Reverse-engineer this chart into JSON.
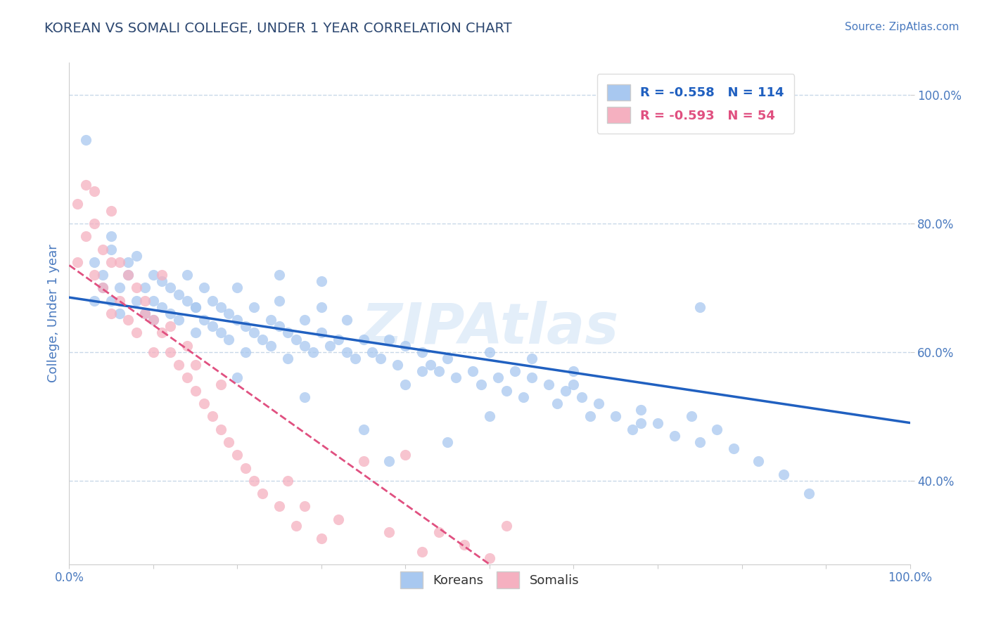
{
  "title": "KOREAN VS SOMALI COLLEGE, UNDER 1 YEAR CORRELATION CHART",
  "source_text": "Source: ZipAtlas.com",
  "watermark": "ZIPAtlas",
  "ylabel": "College, Under 1 year",
  "xlim": [
    0.0,
    1.0
  ],
  "ylim": [
    0.27,
    1.05
  ],
  "right_yticks": [
    1.0,
    0.8,
    0.6,
    0.4
  ],
  "right_yticklabels": [
    "100.0%",
    "80.0%",
    "60.0%",
    "40.0%"
  ],
  "korean_color": "#a8c8f0",
  "somali_color": "#f5b0c0",
  "korean_line_color": "#2060c0",
  "somali_line_color": "#e05080",
  "R_korean": -0.558,
  "N_korean": 114,
  "R_somali": -0.593,
  "N_somali": 54,
  "title_color": "#2c4770",
  "axis_label_color": "#4a7abf",
  "tick_color": "#4a7abf",
  "background_color": "#ffffff",
  "grid_color": "#c8d8e8",
  "korean_line_x0": 0.0,
  "korean_line_y0": 0.685,
  "korean_line_x1": 1.0,
  "korean_line_y1": 0.49,
  "somali_line_x0": 0.0,
  "somali_line_y0": 0.735,
  "somali_line_x1": 0.5,
  "somali_line_y1": 0.27,
  "korean_x": [
    0.02,
    0.03,
    0.03,
    0.04,
    0.04,
    0.05,
    0.05,
    0.05,
    0.06,
    0.06,
    0.07,
    0.07,
    0.08,
    0.08,
    0.09,
    0.09,
    0.1,
    0.1,
    0.1,
    0.11,
    0.11,
    0.12,
    0.12,
    0.13,
    0.13,
    0.14,
    0.14,
    0.15,
    0.15,
    0.16,
    0.16,
    0.17,
    0.17,
    0.18,
    0.18,
    0.19,
    0.19,
    0.2,
    0.2,
    0.21,
    0.21,
    0.22,
    0.22,
    0.23,
    0.24,
    0.24,
    0.25,
    0.25,
    0.26,
    0.26,
    0.27,
    0.28,
    0.28,
    0.29,
    0.3,
    0.3,
    0.31,
    0.32,
    0.33,
    0.34,
    0.35,
    0.36,
    0.37,
    0.38,
    0.39,
    0.4,
    0.4,
    0.42,
    0.43,
    0.44,
    0.45,
    0.46,
    0.48,
    0.49,
    0.5,
    0.51,
    0.52,
    0.53,
    0.54,
    0.55,
    0.55,
    0.57,
    0.58,
    0.59,
    0.6,
    0.61,
    0.62,
    0.63,
    0.65,
    0.67,
    0.68,
    0.7,
    0.72,
    0.74,
    0.75,
    0.77,
    0.79,
    0.82,
    0.85,
    0.88,
    0.3,
    0.25,
    0.33,
    0.35,
    0.28,
    0.42,
    0.15,
    0.5,
    0.6,
    0.75,
    0.38,
    0.2,
    0.45,
    0.68
  ],
  "korean_y": [
    0.93,
    0.68,
    0.74,
    0.7,
    0.72,
    0.68,
    0.76,
    0.78,
    0.7,
    0.66,
    0.72,
    0.74,
    0.68,
    0.75,
    0.7,
    0.66,
    0.72,
    0.68,
    0.65,
    0.71,
    0.67,
    0.7,
    0.66,
    0.69,
    0.65,
    0.68,
    0.72,
    0.67,
    0.63,
    0.7,
    0.65,
    0.68,
    0.64,
    0.67,
    0.63,
    0.66,
    0.62,
    0.65,
    0.7,
    0.64,
    0.6,
    0.67,
    0.63,
    0.62,
    0.65,
    0.61,
    0.64,
    0.68,
    0.63,
    0.59,
    0.62,
    0.61,
    0.65,
    0.6,
    0.63,
    0.67,
    0.61,
    0.62,
    0.6,
    0.59,
    0.62,
    0.6,
    0.59,
    0.62,
    0.58,
    0.61,
    0.55,
    0.6,
    0.58,
    0.57,
    0.59,
    0.56,
    0.57,
    0.55,
    0.6,
    0.56,
    0.54,
    0.57,
    0.53,
    0.56,
    0.59,
    0.55,
    0.52,
    0.54,
    0.57,
    0.53,
    0.5,
    0.52,
    0.5,
    0.48,
    0.51,
    0.49,
    0.47,
    0.5,
    0.46,
    0.48,
    0.45,
    0.43,
    0.41,
    0.38,
    0.71,
    0.72,
    0.65,
    0.48,
    0.53,
    0.57,
    0.67,
    0.5,
    0.55,
    0.67,
    0.43,
    0.56,
    0.46,
    0.49
  ],
  "somali_x": [
    0.01,
    0.01,
    0.02,
    0.02,
    0.03,
    0.03,
    0.03,
    0.04,
    0.04,
    0.05,
    0.05,
    0.05,
    0.06,
    0.06,
    0.07,
    0.07,
    0.08,
    0.08,
    0.09,
    0.09,
    0.1,
    0.1,
    0.11,
    0.11,
    0.12,
    0.12,
    0.13,
    0.14,
    0.14,
    0.15,
    0.15,
    0.16,
    0.17,
    0.18,
    0.18,
    0.19,
    0.2,
    0.21,
    0.22,
    0.23,
    0.25,
    0.26,
    0.27,
    0.28,
    0.3,
    0.32,
    0.35,
    0.38,
    0.4,
    0.42,
    0.44,
    0.47,
    0.5,
    0.52
  ],
  "somali_y": [
    0.74,
    0.83,
    0.78,
    0.86,
    0.72,
    0.8,
    0.85,
    0.76,
    0.7,
    0.74,
    0.82,
    0.66,
    0.74,
    0.68,
    0.72,
    0.65,
    0.7,
    0.63,
    0.66,
    0.68,
    0.65,
    0.6,
    0.63,
    0.72,
    0.6,
    0.64,
    0.58,
    0.56,
    0.61,
    0.54,
    0.58,
    0.52,
    0.5,
    0.48,
    0.55,
    0.46,
    0.44,
    0.42,
    0.4,
    0.38,
    0.36,
    0.4,
    0.33,
    0.36,
    0.31,
    0.34,
    0.43,
    0.32,
    0.44,
    0.29,
    0.32,
    0.3,
    0.28,
    0.33
  ]
}
